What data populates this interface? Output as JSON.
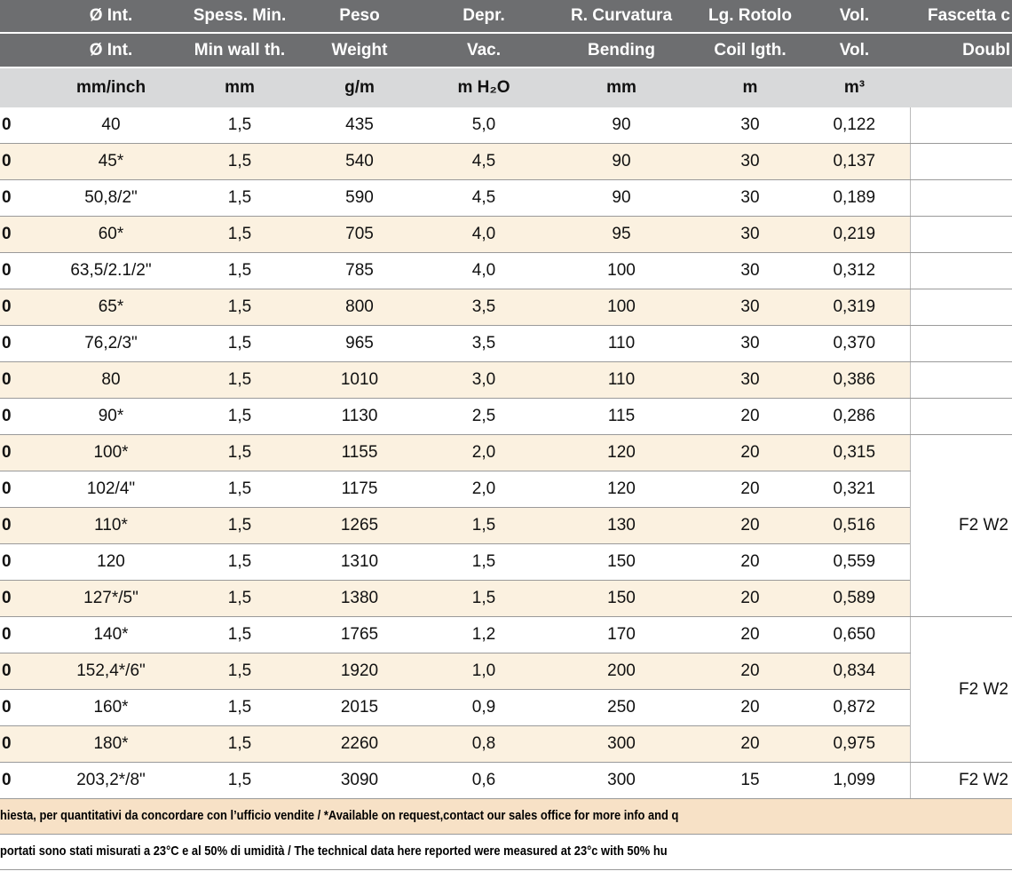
{
  "table": {
    "header_rows": [
      [
        "Ø Int.",
        "Spess. Min.",
        "Peso",
        "Depr.",
        "R. Curvatura",
        "Lg. Rotolo",
        "Vol.",
        "Fascetta c"
      ],
      [
        "Ø Int.",
        "Min wall th.",
        "Weight",
        "Vac.",
        "Bending",
        "Coil lgth.",
        "Vol.",
        "Doubl"
      ],
      [
        "mm/inch",
        "mm",
        "g/m",
        "m H₂O",
        "mm",
        "m",
        "m³"
      ]
    ],
    "rows": [
      [
        "0",
        "40",
        "1,5",
        "435",
        "5,0",
        "90",
        "30",
        "0,122"
      ],
      [
        "0",
        "45*",
        "1,5",
        "540",
        "4,5",
        "90",
        "30",
        "0,137"
      ],
      [
        "0",
        "50,8/2\"",
        "1,5",
        "590",
        "4,5",
        "90",
        "30",
        "0,189"
      ],
      [
        "0",
        "60*",
        "1,5",
        "705",
        "4,0",
        "95",
        "30",
        "0,219"
      ],
      [
        "0",
        "63,5/2.1/2\"",
        "1,5",
        "785",
        "4,0",
        "100",
        "30",
        "0,312"
      ],
      [
        "0",
        "65*",
        "1,5",
        "800",
        "3,5",
        "100",
        "30",
        "0,319"
      ],
      [
        "0",
        "76,2/3\"",
        "1,5",
        "965",
        "3,5",
        "110",
        "30",
        "0,370"
      ],
      [
        "0",
        "80",
        "1,5",
        "1010",
        "3,0",
        "110",
        "30",
        "0,386"
      ],
      [
        "0",
        "90*",
        "1,5",
        "1130",
        "2,5",
        "115",
        "20",
        "0,286"
      ],
      [
        "0",
        "100*",
        "1,5",
        "1155",
        "2,0",
        "120",
        "20",
        "0,315"
      ],
      [
        "0",
        "102/4\"",
        "1,5",
        "1175",
        "2,0",
        "120",
        "20",
        "0,321"
      ],
      [
        "0",
        "110*",
        "1,5",
        "1265",
        "1,5",
        "130",
        "20",
        "0,516"
      ],
      [
        "0",
        "120",
        "1,5",
        "1310",
        "1,5",
        "150",
        "20",
        "0,559"
      ],
      [
        "0",
        "127*/5\"",
        "1,5",
        "1380",
        "1,5",
        "150",
        "20",
        "0,589"
      ],
      [
        "0",
        "140*",
        "1,5",
        "1765",
        "1,2",
        "170",
        "20",
        "0,650"
      ],
      [
        "0",
        "152,4*/6\"",
        "1,5",
        "1920",
        "1,0",
        "200",
        "20",
        "0,834"
      ],
      [
        "0",
        "160*",
        "1,5",
        "2015",
        "0,9",
        "250",
        "20",
        "0,872"
      ],
      [
        "0",
        "180*",
        "1,5",
        "2260",
        "0,8",
        "300",
        "20",
        "0,975"
      ],
      [
        "0",
        "203,2*/8\"",
        "1,5",
        "3090",
        "0,6",
        "300",
        "15",
        "1,099"
      ]
    ],
    "fascetta": [
      "F2 W2",
      "F2 W2",
      "F2 W2"
    ]
  },
  "notes": [
    "hiesta, per quantitativi da concordare con l’ufficio vendite / *Available on request,contact our sales office for more info and q",
    "portati sono stati misurati a 23°C e al 50% di umidità / The technical data here reported were measured at 23°c with 50% hu"
  ]
}
